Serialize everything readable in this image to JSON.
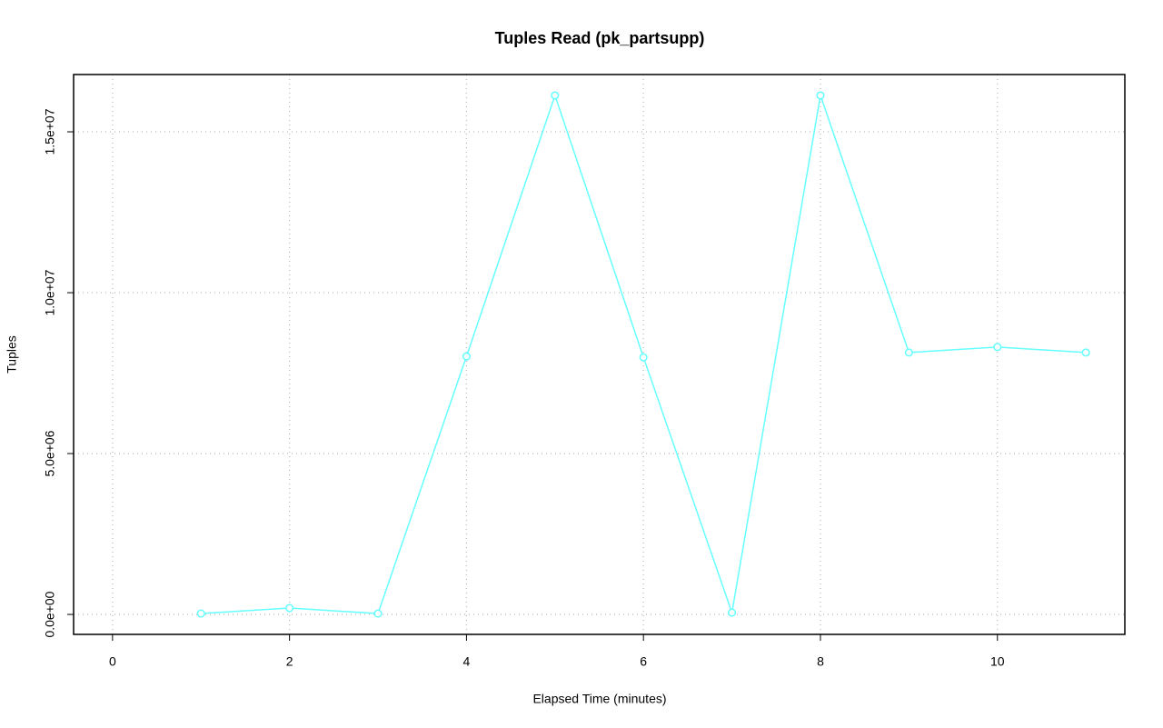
{
  "chart_data": {
    "type": "line",
    "title": "Tuples Read (pk_partsupp)",
    "x_label": "Elapsed Time (minutes)",
    "y_label": "Tuples",
    "x": [
      1,
      2,
      3,
      4,
      5,
      6,
      7,
      8,
      9,
      10,
      11
    ],
    "series": [
      {
        "name": "pk_partsupp",
        "color": "#66ffff",
        "values": [
          28000,
          198000,
          28000,
          8020000,
          16130000,
          7990000,
          56000,
          16130000,
          8140000,
          8310000,
          8140000
        ]
      }
    ],
    "xlim": [
      -0.44,
      11.44
    ],
    "xticks": [
      0,
      2,
      4,
      6,
      8,
      10
    ],
    "ylim": [
      -620000,
      16780000
    ],
    "yticks": [
      {
        "value": 0,
        "label": "0.0e+00"
      },
      {
        "value": 5000000,
        "label": "5.0e+06"
      },
      {
        "value": 10000000,
        "label": "1.0e+07"
      },
      {
        "value": 15000000,
        "label": "1.5e+07"
      }
    ],
    "grid": true
  }
}
